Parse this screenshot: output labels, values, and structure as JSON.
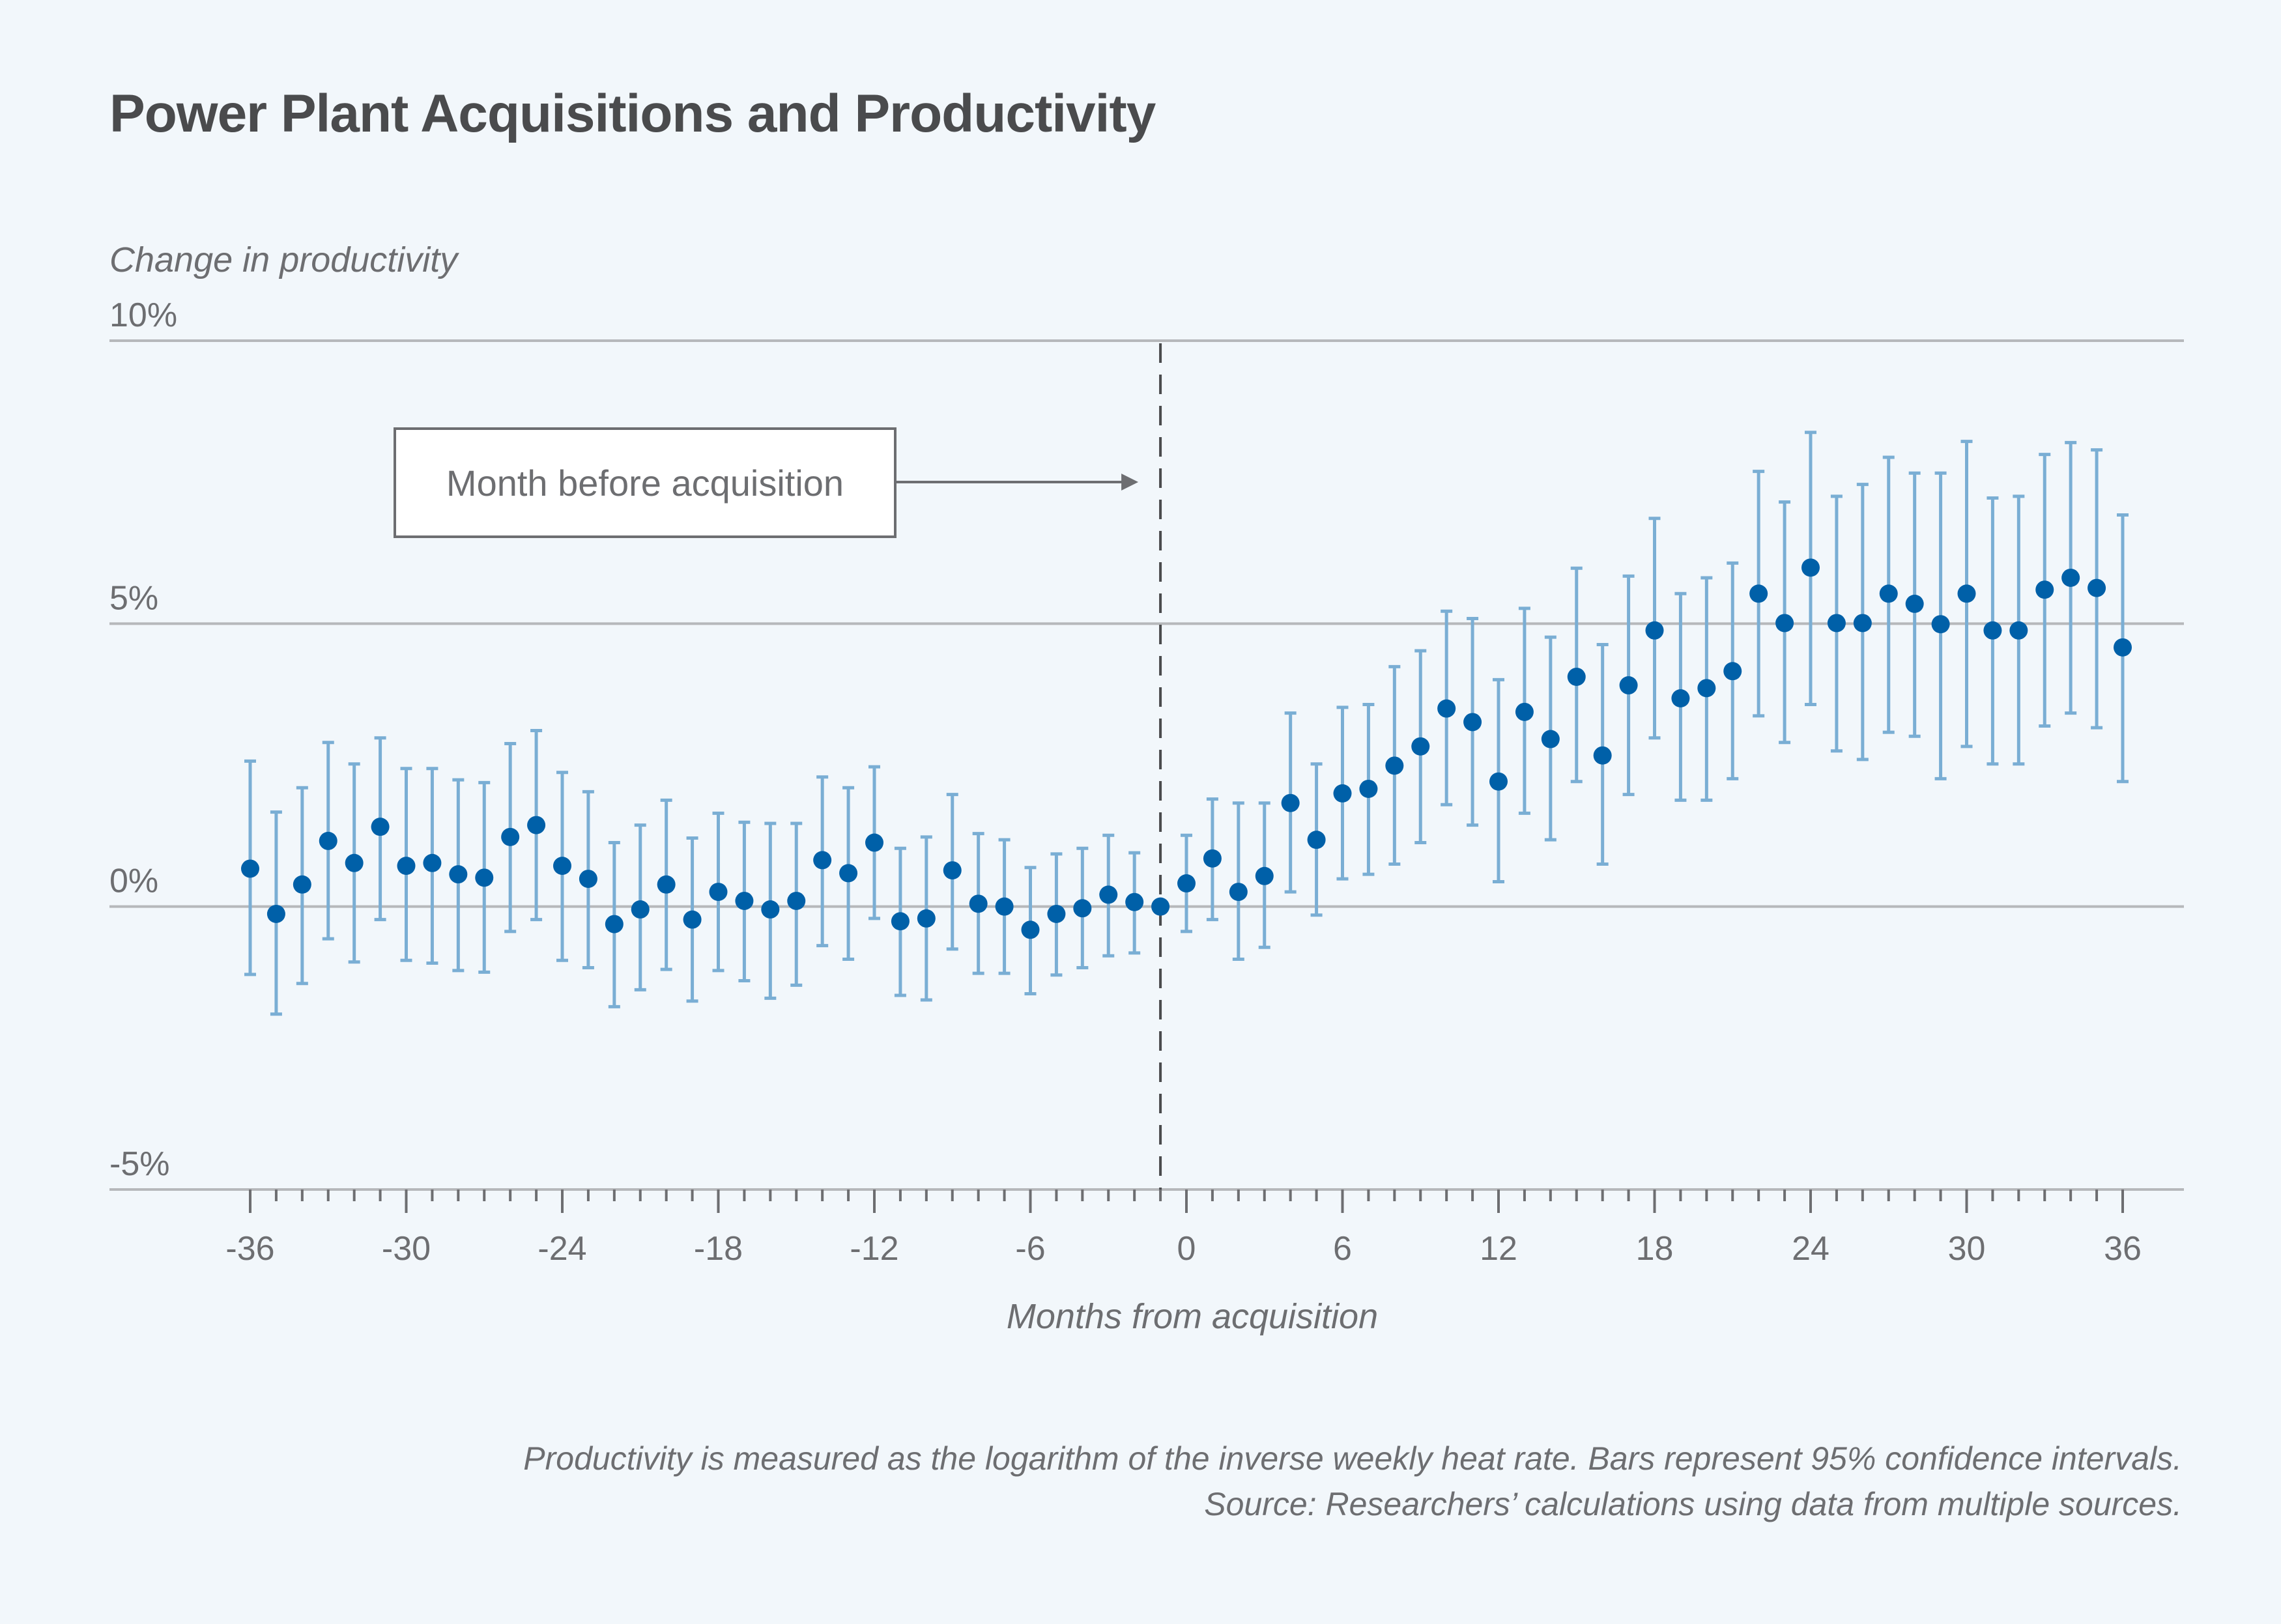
{
  "chart_data": {
    "type": "scatter",
    "subtype": "point-estimates-with-error-bars",
    "title": "Power Plant Acquisitions and Productivity",
    "ylabel": "Change in productivity",
    "xlabel": "Months from acquisition",
    "ylim": [
      -5,
      10
    ],
    "xlim": [
      -36,
      36
    ],
    "yticks": [
      -5,
      0,
      5,
      10
    ],
    "ytick_labels": [
      "-5%",
      "0%",
      "5%",
      "10%"
    ],
    "xticks": [
      -36,
      -30,
      -24,
      -18,
      -12,
      -6,
      0,
      6,
      12,
      18,
      24,
      30,
      36
    ],
    "xtick_labels": [
      "-36",
      "-30",
      "-24",
      "-18",
      "-12",
      "-6",
      "0",
      "6",
      "12",
      "18",
      "24",
      "30",
      "36"
    ],
    "grid": "horizontal",
    "reference_line": {
      "x": -1,
      "style": "dashed",
      "label": "Month before acquisition"
    },
    "series": [
      {
        "name": "Change in productivity",
        "color": "#0060a8",
        "error_color": "#7aaed4",
        "x": [
          -36,
          -35,
          -34,
          -33,
          -32,
          -31,
          -30,
          -29,
          -28,
          -27,
          -26,
          -25,
          -24,
          -23,
          -22,
          -21,
          -20,
          -19,
          -18,
          -17,
          -16,
          -15,
          -14,
          -13,
          -12,
          -11,
          -10,
          -9,
          -8,
          -7,
          -6,
          -5,
          -4,
          -3,
          -2,
          -1,
          0,
          1,
          2,
          3,
          4,
          5,
          6,
          7,
          8,
          9,
          10,
          11,
          12,
          13,
          14,
          15,
          16,
          17,
          18,
          19,
          20,
          21,
          22,
          23,
          24,
          25,
          26,
          27,
          28,
          29,
          30,
          31,
          32,
          33,
          34,
          35,
          36
        ],
        "y": [
          0.67,
          -0.13,
          0.39,
          1.16,
          0.77,
          1.41,
          0.72,
          0.77,
          0.57,
          0.51,
          1.23,
          1.44,
          0.72,
          0.49,
          -0.31,
          -0.05,
          0.39,
          -0.23,
          0.26,
          0.1,
          -0.05,
          0.1,
          0.82,
          0.59,
          1.13,
          -0.26,
          -0.21,
          0.64,
          0.05,
          0.0,
          -0.41,
          -0.13,
          -0.03,
          0.21,
          0.08,
          0.0,
          0.41,
          0.85,
          0.26,
          0.54,
          1.83,
          1.18,
          2.0,
          2.08,
          2.49,
          2.83,
          3.5,
          3.26,
          2.21,
          3.44,
          2.96,
          4.06,
          2.67,
          3.91,
          4.88,
          3.68,
          3.86,
          4.16,
          5.53,
          5.01,
          5.99,
          5.01,
          5.01,
          5.53,
          5.35,
          4.99,
          5.53,
          4.88,
          4.88,
          5.6,
          5.81,
          5.63,
          4.58
        ],
        "ci_low": [
          -1.2,
          -1.9,
          -1.36,
          -0.57,
          -0.98,
          -0.23,
          -0.95,
          -1.0,
          -1.13,
          -1.16,
          -0.44,
          -0.23,
          -0.95,
          -1.08,
          -1.77,
          -1.47,
          -1.11,
          -1.67,
          -1.13,
          -1.31,
          -1.62,
          -1.39,
          -0.69,
          -0.93,
          -0.21,
          -1.57,
          -1.65,
          -0.75,
          -1.18,
          -1.18,
          -1.54,
          -1.21,
          -1.08,
          -0.87,
          -0.82,
          null,
          -0.44,
          -0.23,
          -0.93,
          -0.72,
          0.26,
          -0.15,
          0.49,
          0.57,
          0.75,
          1.13,
          1.8,
          1.44,
          0.44,
          1.65,
          1.18,
          2.21,
          0.75,
          1.98,
          2.98,
          1.88,
          1.88,
          2.26,
          3.37,
          2.9,
          3.57,
          2.75,
          2.6,
          3.08,
          3.01,
          2.26,
          2.83,
          2.52,
          2.52,
          3.19,
          3.42,
          3.16,
          2.21
        ],
        "ci_high": [
          2.57,
          1.67,
          2.1,
          2.9,
          2.52,
          2.98,
          2.44,
          2.44,
          2.24,
          2.19,
          2.88,
          3.11,
          2.37,
          2.03,
          1.13,
          1.44,
          1.88,
          1.21,
          1.65,
          1.49,
          1.47,
          1.47,
          2.29,
          2.1,
          2.47,
          1.03,
          1.23,
          1.98,
          1.29,
          1.18,
          0.69,
          0.93,
          1.03,
          1.26,
          0.95,
          null,
          1.26,
          1.9,
          1.83,
          1.83,
          3.42,
          2.52,
          3.52,
          3.57,
          4.24,
          4.52,
          5.22,
          5.09,
          4.01,
          5.27,
          4.76,
          5.98,
          4.63,
          5.84,
          6.86,
          5.53,
          5.81,
          6.07,
          7.69,
          7.15,
          8.38,
          7.25,
          7.46,
          7.94,
          7.66,
          7.66,
          8.22,
          7.22,
          7.25,
          7.99,
          8.2,
          8.07,
          6.92
        ]
      }
    ],
    "notes": [
      "Productivity is measured as the logarithm of the inverse weekly heat rate. Bars represent 95% confidence intervals.",
      "Source: Researchers’ calculations using data from multiple sources."
    ]
  }
}
